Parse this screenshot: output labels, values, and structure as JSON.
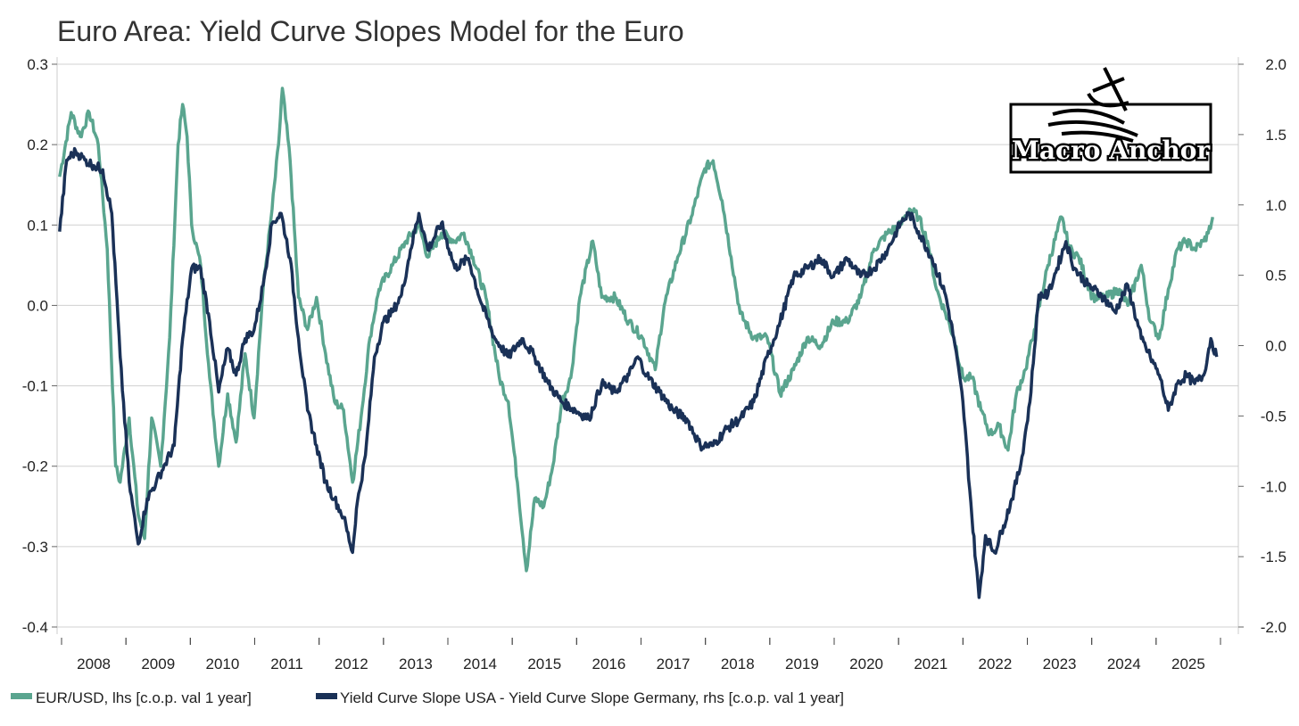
{
  "chart_data": {
    "type": "line",
    "title": "Euro Area: Yield Curve Slopes Model for the Euro",
    "xlabel": "",
    "ylabel_left": "",
    "ylabel_right": "",
    "xlim": [
      2008,
      2026
    ],
    "ylim_left": [
      -0.4,
      0.3
    ],
    "ylim_right": [
      -2.0,
      2.0
    ],
    "yticks_left": [
      "0.3",
      "0.2",
      "0.1",
      "0.0",
      "-0.1",
      "-0.2",
      "-0.3",
      "-0.4"
    ],
    "yticks_right": [
      "2.0",
      "1.5",
      "1.0",
      "0.5",
      "0.0",
      "-0.5",
      "-1.0",
      "-1.5",
      "-2.0"
    ],
    "xticks": [
      "2008",
      "2009",
      "2010",
      "2011",
      "2012",
      "2013",
      "2014",
      "2015",
      "2016",
      "2017",
      "2018",
      "2019",
      "2020",
      "2021",
      "2022",
      "2023",
      "2024",
      "2025"
    ],
    "grid": true,
    "legend_position": "bottom-left",
    "colors": {
      "eurusd": "#5aa58f",
      "slope": "#1a3157",
      "grid": "#d0d0d0",
      "axis": "#999999"
    },
    "series": [
      {
        "name": "EUR/USD, lhs [c.o.p. val 1 year]",
        "axis": "left",
        "points": [
          [
            2007.97,
            0.16
          ],
          [
            2008.15,
            0.24
          ],
          [
            2008.29,
            0.21
          ],
          [
            2008.43,
            0.24
          ],
          [
            2008.57,
            0.2
          ],
          [
            2008.71,
            0.07
          ],
          [
            2008.84,
            -0.2
          ],
          [
            2008.91,
            -0.22
          ],
          [
            2009.05,
            -0.14
          ],
          [
            2009.19,
            -0.26
          ],
          [
            2009.29,
            -0.29
          ],
          [
            2009.4,
            -0.14
          ],
          [
            2009.54,
            -0.2
          ],
          [
            2009.68,
            -0.04
          ],
          [
            2009.81,
            0.2
          ],
          [
            2009.88,
            0.25
          ],
          [
            2009.95,
            0.21
          ],
          [
            2010.02,
            0.1
          ],
          [
            2010.16,
            0.05
          ],
          [
            2010.3,
            -0.09
          ],
          [
            2010.44,
            -0.2
          ],
          [
            2010.58,
            -0.11
          ],
          [
            2010.71,
            -0.17
          ],
          [
            2010.85,
            -0.06
          ],
          [
            2010.99,
            -0.14
          ],
          [
            2011.13,
            0.02
          ],
          [
            2011.27,
            0.12
          ],
          [
            2011.37,
            0.2
          ],
          [
            2011.43,
            0.27
          ],
          [
            2011.55,
            0.18
          ],
          [
            2011.68,
            0.01
          ],
          [
            2011.82,
            -0.03
          ],
          [
            2011.96,
            0.01
          ],
          [
            2012.1,
            -0.06
          ],
          [
            2012.24,
            -0.12
          ],
          [
            2012.38,
            -0.13
          ],
          [
            2012.52,
            -0.22
          ],
          [
            2012.65,
            -0.14
          ],
          [
            2012.79,
            -0.04
          ],
          [
            2012.93,
            0.02
          ],
          [
            2013.14,
            0.05
          ],
          [
            2013.35,
            0.08
          ],
          [
            2013.55,
            0.1
          ],
          [
            2013.69,
            0.06
          ],
          [
            2013.9,
            0.09
          ],
          [
            2014.11,
            0.08
          ],
          [
            2014.25,
            0.09
          ],
          [
            2014.39,
            0.06
          ],
          [
            2014.59,
            0.01
          ],
          [
            2014.8,
            -0.09
          ],
          [
            2014.94,
            -0.12
          ],
          [
            2015.08,
            -0.22
          ],
          [
            2015.22,
            -0.33
          ],
          [
            2015.35,
            -0.24
          ],
          [
            2015.49,
            -0.25
          ],
          [
            2015.63,
            -0.2
          ],
          [
            2015.77,
            -0.12
          ],
          [
            2015.91,
            -0.09
          ],
          [
            2016.05,
            0.01
          ],
          [
            2016.25,
            0.08
          ],
          [
            2016.39,
            0.01
          ],
          [
            2016.6,
            0.01
          ],
          [
            2016.81,
            -0.02
          ],
          [
            2017.02,
            -0.04
          ],
          [
            2017.22,
            -0.08
          ],
          [
            2017.36,
            0.0
          ],
          [
            2017.57,
            0.06
          ],
          [
            2017.78,
            0.11
          ],
          [
            2017.99,
            0.17
          ],
          [
            2018.12,
            0.18
          ],
          [
            2018.26,
            0.13
          ],
          [
            2018.4,
            0.06
          ],
          [
            2018.54,
            -0.01
          ],
          [
            2018.75,
            -0.04
          ],
          [
            2018.96,
            -0.04
          ],
          [
            2019.16,
            -0.11
          ],
          [
            2019.37,
            -0.08
          ],
          [
            2019.58,
            -0.04
          ],
          [
            2019.79,
            -0.05
          ],
          [
            2019.99,
            -0.02
          ],
          [
            2020.2,
            -0.02
          ],
          [
            2020.41,
            0.01
          ],
          [
            2020.62,
            0.07
          ],
          [
            2020.83,
            0.09
          ],
          [
            2021.03,
            0.1
          ],
          [
            2021.17,
            0.12
          ],
          [
            2021.31,
            0.11
          ],
          [
            2021.45,
            0.08
          ],
          [
            2021.59,
            0.02
          ],
          [
            2021.73,
            -0.01
          ],
          [
            2021.86,
            -0.04
          ],
          [
            2022.0,
            -0.09
          ],
          [
            2022.14,
            -0.09
          ],
          [
            2022.28,
            -0.13
          ],
          [
            2022.42,
            -0.16
          ],
          [
            2022.56,
            -0.15
          ],
          [
            2022.7,
            -0.18
          ],
          [
            2022.83,
            -0.11
          ],
          [
            2022.97,
            -0.08
          ],
          [
            2023.11,
            -0.03
          ],
          [
            2023.32,
            0.05
          ],
          [
            2023.53,
            0.11
          ],
          [
            2023.66,
            0.07
          ],
          [
            2023.8,
            0.06
          ],
          [
            2024.01,
            0.01
          ],
          [
            2024.22,
            0.01
          ],
          [
            2024.43,
            0.02
          ],
          [
            2024.56,
            0.0
          ],
          [
            2024.77,
            0.05
          ],
          [
            2024.91,
            -0.02
          ],
          [
            2025.05,
            -0.04
          ],
          [
            2025.19,
            0.02
          ],
          [
            2025.33,
            0.07
          ],
          [
            2025.47,
            0.08
          ],
          [
            2025.6,
            0.07
          ],
          [
            2025.74,
            0.08
          ],
          [
            2025.81,
            0.09
          ],
          [
            2025.88,
            0.11
          ]
        ]
      },
      {
        "name": "Yield Curve Slope USA - Yield Curve Slope Germany, rhs [c.o.p. val 1 year]",
        "axis": "right",
        "points": [
          [
            2007.97,
            0.81
          ],
          [
            2008.08,
            1.32
          ],
          [
            2008.22,
            1.38
          ],
          [
            2008.36,
            1.32
          ],
          [
            2008.5,
            1.28
          ],
          [
            2008.64,
            1.25
          ],
          [
            2008.78,
            0.94
          ],
          [
            2008.91,
            -0.08
          ],
          [
            2009.05,
            -0.97
          ],
          [
            2009.19,
            -1.41
          ],
          [
            2009.33,
            -1.09
          ],
          [
            2009.47,
            -0.97
          ],
          [
            2009.61,
            -0.84
          ],
          [
            2009.75,
            -0.71
          ],
          [
            2009.88,
            0.05
          ],
          [
            2010.02,
            0.55
          ],
          [
            2010.16,
            0.55
          ],
          [
            2010.3,
            0.17
          ],
          [
            2010.44,
            -0.33
          ],
          [
            2010.58,
            -0.02
          ],
          [
            2010.71,
            -0.21
          ],
          [
            2010.85,
            0.05
          ],
          [
            2010.99,
            0.11
          ],
          [
            2011.13,
            0.43
          ],
          [
            2011.27,
            0.87
          ],
          [
            2011.41,
            0.94
          ],
          [
            2011.55,
            0.62
          ],
          [
            2011.68,
            0.05
          ],
          [
            2011.82,
            -0.46
          ],
          [
            2011.96,
            -0.71
          ],
          [
            2012.1,
            -0.97
          ],
          [
            2012.24,
            -1.09
          ],
          [
            2012.38,
            -1.22
          ],
          [
            2012.52,
            -1.47
          ],
          [
            2012.58,
            -1.16
          ],
          [
            2012.72,
            -0.78
          ],
          [
            2012.86,
            -0.08
          ],
          [
            2013.0,
            0.17
          ],
          [
            2013.14,
            0.24
          ],
          [
            2013.28,
            0.36
          ],
          [
            2013.42,
            0.68
          ],
          [
            2013.55,
            0.94
          ],
          [
            2013.69,
            0.68
          ],
          [
            2013.9,
            0.87
          ],
          [
            2014.11,
            0.55
          ],
          [
            2014.32,
            0.62
          ],
          [
            2014.52,
            0.3
          ],
          [
            2014.73,
            0.05
          ],
          [
            2014.94,
            -0.08
          ],
          [
            2015.15,
            0.05
          ],
          [
            2015.35,
            -0.08
          ],
          [
            2015.56,
            -0.27
          ],
          [
            2015.77,
            -0.4
          ],
          [
            2015.98,
            -0.46
          ],
          [
            2016.19,
            -0.52
          ],
          [
            2016.39,
            -0.27
          ],
          [
            2016.6,
            -0.33
          ],
          [
            2016.81,
            -0.21
          ],
          [
            2016.95,
            -0.08
          ],
          [
            2017.09,
            -0.21
          ],
          [
            2017.29,
            -0.33
          ],
          [
            2017.5,
            -0.46
          ],
          [
            2017.71,
            -0.52
          ],
          [
            2017.92,
            -0.71
          ],
          [
            2018.12,
            -0.71
          ],
          [
            2018.33,
            -0.59
          ],
          [
            2018.54,
            -0.52
          ],
          [
            2018.75,
            -0.4
          ],
          [
            2018.96,
            -0.08
          ],
          [
            2019.16,
            0.17
          ],
          [
            2019.37,
            0.49
          ],
          [
            2019.58,
            0.55
          ],
          [
            2019.79,
            0.62
          ],
          [
            2019.99,
            0.49
          ],
          [
            2020.2,
            0.62
          ],
          [
            2020.41,
            0.49
          ],
          [
            2020.62,
            0.55
          ],
          [
            2020.83,
            0.68
          ],
          [
            2021.03,
            0.87
          ],
          [
            2021.17,
            0.94
          ],
          [
            2021.31,
            0.81
          ],
          [
            2021.52,
            0.62
          ],
          [
            2021.73,
            0.36
          ],
          [
            2021.86,
            0.05
          ],
          [
            2022.0,
            -0.4
          ],
          [
            2022.14,
            -1.22
          ],
          [
            2022.25,
            -1.79
          ],
          [
            2022.35,
            -1.35
          ],
          [
            2022.49,
            -1.47
          ],
          [
            2022.63,
            -1.28
          ],
          [
            2022.76,
            -1.09
          ],
          [
            2022.9,
            -0.84
          ],
          [
            2023.04,
            -0.4
          ],
          [
            2023.18,
            0.36
          ],
          [
            2023.32,
            0.36
          ],
          [
            2023.46,
            0.55
          ],
          [
            2023.6,
            0.74
          ],
          [
            2023.73,
            0.55
          ],
          [
            2023.94,
            0.43
          ],
          [
            2024.15,
            0.36
          ],
          [
            2024.36,
            0.24
          ],
          [
            2024.56,
            0.43
          ],
          [
            2024.77,
            0.05
          ],
          [
            2024.91,
            -0.08
          ],
          [
            2025.05,
            -0.21
          ],
          [
            2025.19,
            -0.46
          ],
          [
            2025.33,
            -0.27
          ],
          [
            2025.47,
            -0.21
          ],
          [
            2025.6,
            -0.27
          ],
          [
            2025.74,
            -0.21
          ],
          [
            2025.85,
            0.05
          ],
          [
            2025.94,
            -0.08
          ]
        ]
      }
    ]
  },
  "logo": {
    "text": "Macro Anchor"
  }
}
